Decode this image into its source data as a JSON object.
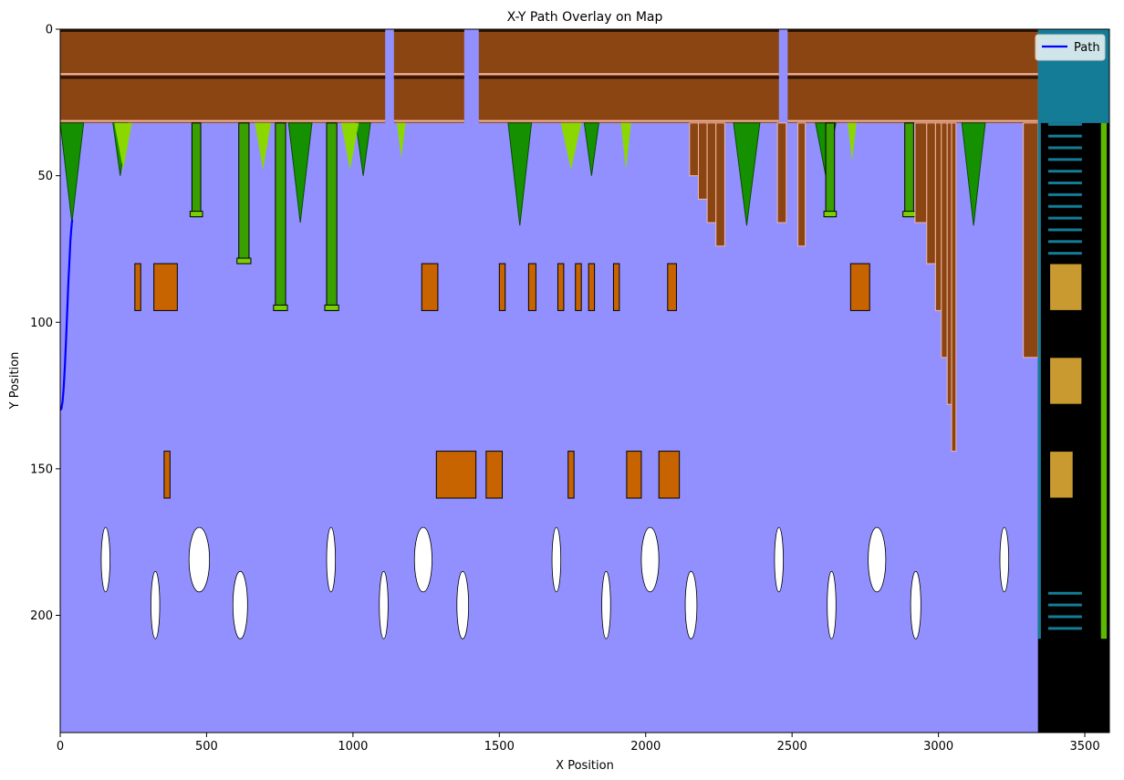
{
  "chart_data": {
    "type": "line",
    "title": "X-Y Path Overlay on Map",
    "xlabel": "X Position",
    "ylabel": "Y Position",
    "xlim": [
      0,
      3584
    ],
    "ylim": [
      240,
      0
    ],
    "xticks": [
      0,
      500,
      1000,
      1500,
      2000,
      2500,
      3000,
      3500
    ],
    "yticks": [
      0,
      50,
      100,
      150,
      200
    ],
    "grid": false,
    "legend_position": "top-right",
    "series": [
      {
        "name": "Path",
        "color": "#0000ff",
        "x": [
          0,
          4,
          8,
          12,
          16,
          20,
          24,
          28,
          32,
          35,
          38,
          40,
          41
        ],
        "y": [
          130,
          129.5,
          127,
          122,
          115,
          106,
          96,
          86,
          78,
          72,
          68,
          66,
          65
        ]
      }
    ],
    "background": {
      "description_icon": "level-map-image",
      "sky_color": "#9290ff",
      "ground_color": "#8b4513",
      "pipe_color": "#3aa000",
      "hill_color": "#159000",
      "cloud_color": "#ffffff",
      "underground_color": "#000000",
      "underground_tile_color": "#147c96"
    }
  }
}
